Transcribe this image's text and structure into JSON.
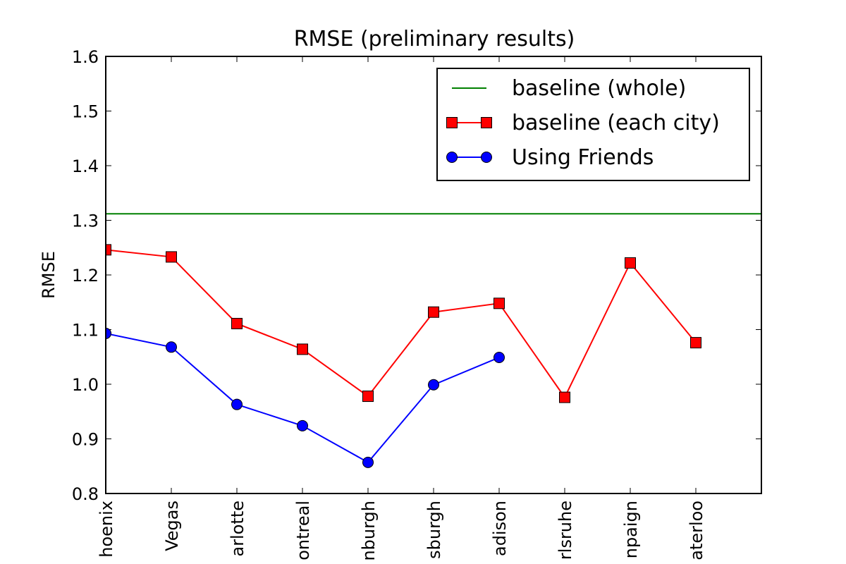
{
  "chart_data": {
    "type": "line",
    "title": "RMSE (preliminary results)",
    "xlabel": "",
    "ylabel": "RMSE",
    "ylim": [
      0.8,
      1.6
    ],
    "yticks": [
      "0.8",
      "0.9",
      "1.0",
      "1.1",
      "1.2",
      "1.3",
      "1.4",
      "1.5",
      "1.6"
    ],
    "categories": [
      "Phoenix",
      "Las Vegas",
      "Charlotte",
      "Montreal",
      "Edinburgh",
      "Pittsburgh",
      "Madison",
      "Karlsruhe",
      "Urbana-Champaign",
      "Waterloo"
    ],
    "tick_labels_visible": [
      "hoenix",
      "Vegas",
      "arlotte",
      "ontreal",
      "nburgh",
      "sburgh",
      "adison",
      "rlsruhe",
      "npaign",
      "aterloo"
    ],
    "x_extent": [
      0,
      10
    ],
    "legend_position": "top-right",
    "grid": false,
    "series": [
      {
        "name": "baseline (whole)",
        "kind": "hline",
        "value": 1.312,
        "color": "#008000",
        "marker": "none"
      },
      {
        "name": "baseline (each city)",
        "kind": "line",
        "values": [
          1.246,
          1.233,
          1.111,
          1.064,
          0.978,
          1.132,
          1.148,
          0.976,
          1.222,
          1.076
        ],
        "color": "#ff0000",
        "marker": "square"
      },
      {
        "name": "Using Friends",
        "kind": "line",
        "values": [
          1.093,
          1.068,
          0.963,
          0.924,
          0.857,
          0.999,
          1.049,
          null,
          null,
          null
        ],
        "color": "#0000ff",
        "marker": "circle"
      }
    ]
  }
}
